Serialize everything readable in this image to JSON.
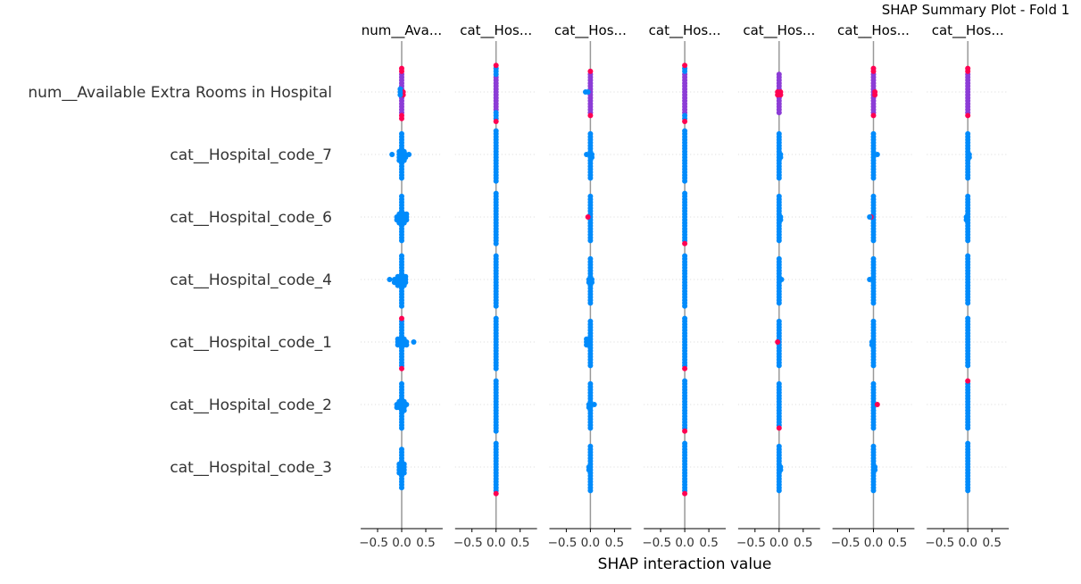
{
  "chart_data": {
    "type": "scatter",
    "subtype": "beeswarm",
    "title": "SHAP Summary Plot - Fold 1",
    "xlabel": "SHAP interaction value",
    "xlim": [
      -0.85,
      0.85
    ],
    "xticks": [
      "−0.5",
      "0.0",
      "0.5"
    ],
    "xtick_values": [
      -0.5,
      0,
      0.5
    ],
    "grid": "dotted horizontal per feature row",
    "colors": {
      "low": "#008bfb",
      "high": "#ff0052",
      "mid": "#8c3cd6",
      "zero_line": "#999999"
    },
    "features": [
      "num__Available Extra Rooms in Hospital",
      "cat__Hospital_code_7",
      "cat__Hospital_code_6",
      "cat__Hospital_code_4",
      "cat__Hospital_code_1",
      "cat__Hospital_code_2",
      "cat__Hospital_code_3"
    ],
    "panels": [
      {
        "title": "num__Ava...",
        "cells": [
          [
            [
              0,
              14,
              "mid"
            ],
            [
              0,
              4,
              "high"
            ],
            [
              0.03,
              2,
              "high"
            ],
            [
              -0.03,
              3,
              "low"
            ]
          ],
          [
            [
              0,
              16,
              "low"
            ],
            [
              -0.05,
              4,
              "low"
            ],
            [
              0.05,
              4,
              "low"
            ],
            [
              -0.2,
              1,
              "low"
            ],
            [
              0.15,
              1,
              "low"
            ],
            [
              0.08,
              2,
              "low"
            ]
          ],
          [
            [
              0,
              16,
              "low"
            ],
            [
              -0.1,
              2,
              "low"
            ],
            [
              0.1,
              3,
              "low"
            ],
            [
              0.05,
              4,
              "low"
            ],
            [
              -0.05,
              4,
              "low"
            ]
          ],
          [
            [
              0,
              18,
              "low"
            ],
            [
              -0.25,
              1,
              "low"
            ],
            [
              -0.15,
              2,
              "low"
            ],
            [
              -0.08,
              4,
              "low"
            ],
            [
              0.08,
              3,
              "low"
            ],
            [
              0.05,
              4,
              "low"
            ]
          ],
          [
            [
              0,
              16,
              "low"
            ],
            [
              0,
              2,
              "high"
            ],
            [
              -0.08,
              3,
              "low"
            ],
            [
              0.1,
              2,
              "low"
            ],
            [
              0.25,
              1,
              "low"
            ],
            [
              0.05,
              3,
              "low"
            ]
          ],
          [
            [
              0,
              16,
              "low"
            ],
            [
              -0.1,
              2,
              "low"
            ],
            [
              0.05,
              4,
              "low"
            ],
            [
              -0.05,
              3,
              "low"
            ],
            [
              0.1,
              1,
              "low"
            ]
          ],
          [
            [
              0,
              14,
              "low"
            ],
            [
              -0.05,
              4,
              "low"
            ],
            [
              0.05,
              4,
              "low"
            ]
          ]
        ]
      },
      {
        "title": "cat__Hos...",
        "cells": [
          [
            [
              0,
              12,
              "mid"
            ],
            [
              0,
              6,
              "low"
            ],
            [
              0,
              2,
              "high"
            ]
          ],
          [
            [
              0,
              18,
              "low"
            ]
          ],
          [
            [
              0,
              18,
              "low"
            ]
          ],
          [
            [
              0,
              18,
              "low"
            ]
          ],
          [
            [
              0,
              18,
              "low"
            ]
          ],
          [
            [
              0,
              18,
              "low"
            ]
          ],
          [
            [
              0,
              17,
              "low"
            ],
            [
              0,
              1,
              "high"
            ]
          ]
        ]
      },
      {
        "title": "cat__Hos...",
        "cells": [
          [
            [
              0,
              14,
              "mid"
            ],
            [
              0,
              2,
              "high"
            ],
            [
              -0.1,
              1,
              "low"
            ],
            [
              -0.05,
              1,
              "low"
            ]
          ],
          [
            [
              0,
              16,
              "low"
            ],
            [
              -0.08,
              1,
              "low"
            ],
            [
              0.03,
              2,
              "low"
            ]
          ],
          [
            [
              0,
              16,
              "low"
            ],
            [
              -0.05,
              1,
              "high"
            ]
          ],
          [
            [
              0,
              16,
              "low"
            ],
            [
              -0.03,
              2,
              "low"
            ],
            [
              0.03,
              2,
              "low"
            ]
          ],
          [
            [
              0,
              16,
              "low"
            ],
            [
              -0.08,
              3,
              "low"
            ],
            [
              -0.05,
              2,
              "low"
            ]
          ],
          [
            [
              0,
              16,
              "low"
            ],
            [
              0.08,
              1,
              "low"
            ],
            [
              -0.03,
              2,
              "low"
            ]
          ],
          [
            [
              0,
              16,
              "low"
            ],
            [
              -0.03,
              2,
              "low"
            ]
          ]
        ]
      },
      {
        "title": "cat__Hos...",
        "cells": [
          [
            [
              0,
              14,
              "mid"
            ],
            [
              0,
              4,
              "low"
            ],
            [
              0,
              2,
              "high"
            ]
          ],
          [
            [
              0,
              18,
              "low"
            ]
          ],
          [
            [
              0,
              17,
              "low"
            ],
            [
              0,
              1,
              "high"
            ]
          ],
          [
            [
              0,
              18,
              "low"
            ]
          ],
          [
            [
              0,
              17,
              "low"
            ],
            [
              0,
              1,
              "high"
            ]
          ],
          [
            [
              0,
              17,
              "low"
            ],
            [
              0,
              1,
              "high"
            ]
          ],
          [
            [
              0,
              17,
              "low"
            ],
            [
              0,
              1,
              "high"
            ]
          ]
        ]
      },
      {
        "title": "cat__Hos...",
        "cells": [
          [
            [
              0,
              14,
              "mid"
            ],
            [
              -0.03,
              2,
              "high"
            ],
            [
              0.03,
              2,
              "high"
            ]
          ],
          [
            [
              0,
              16,
              "low"
            ],
            [
              0.03,
              2,
              "low"
            ]
          ],
          [
            [
              0,
              16,
              "low"
            ],
            [
              0.03,
              2,
              "low"
            ]
          ],
          [
            [
              0,
              16,
              "low"
            ],
            [
              0.05,
              1,
              "low"
            ]
          ],
          [
            [
              0,
              16,
              "low"
            ],
            [
              -0.03,
              1,
              "high"
            ]
          ],
          [
            [
              0,
              15,
              "low"
            ],
            [
              0,
              1,
              "high"
            ]
          ],
          [
            [
              0,
              16,
              "low"
            ],
            [
              0.03,
              2,
              "low"
            ]
          ]
        ]
      },
      {
        "title": "cat__Hos...",
        "cells": [
          [
            [
              0,
              14,
              "mid"
            ],
            [
              0,
              3,
              "high"
            ],
            [
              0.03,
              2,
              "high"
            ]
          ],
          [
            [
              0,
              16,
              "low"
            ],
            [
              0.08,
              1,
              "low"
            ]
          ],
          [
            [
              0,
              16,
              "low"
            ],
            [
              -0.05,
              1,
              "high"
            ],
            [
              -0.08,
              1,
              "low"
            ]
          ],
          [
            [
              0,
              16,
              "low"
            ],
            [
              -0.08,
              1,
              "low"
            ]
          ],
          [
            [
              0,
              16,
              "low"
            ],
            [
              -0.03,
              2,
              "low"
            ]
          ],
          [
            [
              0,
              16,
              "low"
            ],
            [
              0.08,
              1,
              "high"
            ]
          ],
          [
            [
              0,
              16,
              "low"
            ],
            [
              0.03,
              2,
              "low"
            ]
          ]
        ]
      },
      {
        "title": "",
        "cells": [
          [
            [
              0,
              14,
              "mid"
            ],
            [
              0,
              3,
              "high"
            ]
          ],
          [
            [
              0,
              16,
              "low"
            ],
            [
              0.03,
              2,
              "low"
            ]
          ],
          [
            [
              0,
              16,
              "low"
            ],
            [
              -0.03,
              2,
              "low"
            ]
          ],
          [
            [
              0,
              17,
              "low"
            ]
          ],
          [
            [
              0,
              17,
              "low"
            ]
          ],
          [
            [
              0,
              16,
              "low"
            ],
            [
              0,
              1,
              "high"
            ]
          ],
          [
            [
              0,
              17,
              "low"
            ]
          ]
        ]
      }
    ],
    "last_panel_title": "cat__Hos..."
  }
}
